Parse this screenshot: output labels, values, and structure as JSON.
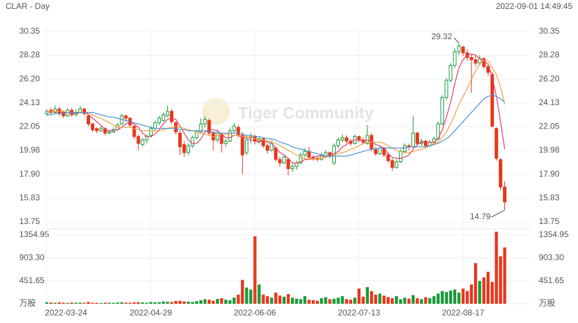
{
  "chart_data": {
    "type": "candlestick",
    "title": "CLAR - Day",
    "timestamp": "2022-09-01 14:49:45",
    "watermark": "Tiger Community",
    "up_color": "#1a9a3a",
    "down_color": "#e8361a",
    "categories": [
      "2022-03-24",
      null,
      null,
      null,
      null,
      null,
      null,
      null,
      null,
      null,
      null,
      null,
      null,
      null,
      null,
      null,
      null,
      null,
      null,
      null,
      null,
      null,
      null,
      null,
      null,
      "2022-04-29",
      null,
      null,
      null,
      null,
      null,
      null,
      null,
      null,
      null,
      null,
      null,
      null,
      null,
      null,
      null,
      null,
      null,
      null,
      null,
      null,
      null,
      null,
      null,
      null,
      "2022-06-06",
      null,
      null,
      null,
      null,
      null,
      null,
      null,
      null,
      null,
      null,
      null,
      null,
      null,
      null,
      null,
      null,
      null,
      null,
      null,
      null,
      null,
      null,
      null,
      null,
      "2022-07-13",
      null,
      null,
      null,
      null,
      null,
      null,
      null,
      null,
      null,
      null,
      null,
      null,
      null,
      null,
      null,
      null,
      null,
      null,
      null,
      null,
      null,
      null,
      null,
      null,
      "2022-08-17",
      null,
      null,
      null,
      null,
      null,
      null,
      null,
      null,
      null,
      null
    ],
    "candles": [
      [
        23.2,
        23.6,
        23.0,
        23.4
      ],
      [
        23.5,
        23.7,
        23.1,
        23.3
      ],
      [
        23.3,
        23.9,
        23.2,
        23.6
      ],
      [
        23.6,
        23.8,
        23.0,
        23.2
      ],
      [
        23.3,
        23.5,
        22.8,
        23.0
      ],
      [
        23.0,
        23.7,
        22.9,
        23.5
      ],
      [
        23.5,
        23.7,
        22.9,
        23.1
      ],
      [
        23.1,
        23.6,
        23.0,
        23.3
      ],
      [
        23.3,
        23.9,
        23.2,
        23.6
      ],
      [
        23.6,
        23.7,
        23.0,
        23.2
      ],
      [
        23.0,
        23.1,
        22.1,
        22.3
      ],
      [
        22.3,
        22.4,
        21.6,
        21.8
      ],
      [
        21.9,
        22.0,
        21.5,
        21.7
      ],
      [
        21.7,
        22.1,
        21.6,
        21.9
      ],
      [
        21.9,
        22.0,
        21.3,
        21.5
      ],
      [
        21.5,
        21.8,
        21.4,
        21.6
      ],
      [
        21.6,
        22.0,
        21.5,
        21.8
      ],
      [
        21.8,
        22.4,
        21.7,
        22.2
      ],
      [
        22.3,
        23.2,
        22.2,
        23.0
      ],
      [
        23.0,
        23.1,
        22.5,
        22.8
      ],
      [
        22.8,
        22.9,
        22.0,
        22.2
      ],
      [
        22.1,
        22.2,
        21.0,
        21.2
      ],
      [
        21.2,
        21.4,
        20.0,
        20.6
      ],
      [
        20.5,
        21.1,
        20.3,
        20.9
      ],
      [
        20.9,
        21.4,
        20.6,
        21.2
      ],
      [
        21.3,
        22.1,
        21.1,
        21.9
      ],
      [
        21.9,
        22.6,
        21.7,
        22.4
      ],
      [
        22.4,
        23.0,
        22.2,
        22.8
      ],
      [
        22.6,
        23.3,
        22.5,
        23.1
      ],
      [
        23.0,
        23.9,
        22.9,
        23.4
      ],
      [
        23.4,
        23.6,
        22.3,
        22.5
      ],
      [
        22.4,
        22.5,
        21.4,
        21.6
      ],
      [
        21.5,
        21.7,
        19.6,
        20.3
      ],
      [
        20.5,
        20.8,
        19.4,
        19.8
      ],
      [
        19.8,
        20.6,
        19.6,
        20.4
      ],
      [
        20.4,
        21.3,
        20.2,
        21.1
      ],
      [
        21.1,
        21.8,
        20.9,
        21.6
      ],
      [
        21.6,
        22.8,
        21.5,
        22.3
      ],
      [
        22.3,
        23.0,
        22.0,
        22.7
      ],
      [
        22.6,
        22.8,
        21.3,
        21.5
      ],
      [
        21.5,
        21.6,
        20.0,
        20.9
      ],
      [
        20.9,
        21.8,
        20.7,
        21.5
      ],
      [
        21.4,
        21.5,
        19.8,
        20.6
      ],
      [
        20.6,
        21.0,
        20.3,
        20.8
      ],
      [
        20.8,
        22.0,
        20.7,
        21.7
      ],
      [
        21.7,
        22.4,
        21.5,
        22.1
      ],
      [
        22.0,
        22.2,
        21.1,
        21.3
      ],
      [
        21.3,
        21.6,
        17.9,
        19.6
      ],
      [
        19.8,
        21.1,
        19.6,
        20.9
      ],
      [
        21.1,
        21.5,
        20.6,
        21.2
      ],
      [
        21.2,
        21.4,
        20.5,
        20.8
      ],
      [
        20.8,
        21.2,
        20.6,
        21.0
      ],
      [
        21.0,
        21.1,
        20.2,
        20.4
      ],
      [
        20.4,
        20.6,
        19.7,
        20.0
      ],
      [
        20.0,
        20.8,
        19.9,
        20.6
      ],
      [
        20.2,
        20.3,
        19.0,
        19.2
      ],
      [
        19.2,
        19.4,
        18.6,
        18.9
      ],
      [
        18.9,
        19.6,
        18.8,
        19.4
      ],
      [
        19.2,
        19.3,
        17.8,
        18.4
      ],
      [
        18.4,
        18.8,
        18.1,
        18.6
      ],
      [
        18.6,
        19.1,
        18.3,
        18.9
      ],
      [
        18.9,
        19.8,
        18.8,
        19.6
      ],
      [
        19.6,
        20.2,
        19.4,
        19.9
      ],
      [
        19.9,
        20.3,
        19.2,
        19.4
      ],
      [
        19.4,
        19.6,
        19.1,
        19.3
      ],
      [
        19.3,
        19.5,
        19.0,
        19.2
      ],
      [
        19.2,
        19.8,
        19.1,
        19.6
      ],
      [
        19.5,
        20.0,
        19.3,
        19.8
      ],
      [
        19.8,
        19.9,
        19.3,
        19.5
      ],
      [
        18.9,
        20.6,
        18.7,
        20.4
      ],
      [
        20.4,
        21.1,
        20.2,
        20.9
      ],
      [
        20.9,
        21.4,
        20.7,
        21.1
      ],
      [
        21.1,
        21.3,
        20.6,
        20.8
      ],
      [
        20.8,
        21.0,
        20.4,
        20.6
      ],
      [
        20.6,
        21.4,
        20.5,
        21.2
      ],
      [
        21.2,
        21.3,
        20.7,
        20.9
      ],
      [
        20.9,
        21.1,
        20.5,
        20.7
      ],
      [
        20.6,
        22.2,
        20.5,
        21.3
      ],
      [
        21.3,
        21.5,
        19.9,
        20.1
      ],
      [
        20.1,
        20.3,
        19.5,
        19.7
      ],
      [
        19.7,
        20.4,
        19.6,
        20.2
      ],
      [
        20.2,
        20.3,
        19.4,
        19.6
      ],
      [
        19.6,
        19.8,
        18.9,
        19.1
      ],
      [
        19.1,
        19.3,
        18.2,
        18.5
      ],
      [
        18.5,
        19.2,
        18.4,
        19.0
      ],
      [
        19.0,
        20.1,
        18.9,
        19.9
      ],
      [
        19.9,
        20.6,
        19.7,
        20.4
      ],
      [
        20.4,
        20.6,
        20.0,
        20.3
      ],
      [
        20.3,
        23.0,
        20.2,
        21.5
      ],
      [
        21.5,
        21.6,
        20.4,
        20.6
      ],
      [
        20.6,
        21.0,
        20.4,
        20.8
      ],
      [
        20.8,
        20.9,
        20.2,
        20.4
      ],
      [
        20.4,
        20.9,
        20.3,
        20.7
      ],
      [
        20.7,
        21.2,
        20.5,
        21.0
      ],
      [
        21.0,
        22.5,
        20.9,
        22.3
      ],
      [
        22.3,
        24.8,
        22.2,
        24.6
      ],
      [
        24.6,
        26.3,
        24.4,
        26.1
      ],
      [
        26.1,
        27.6,
        25.9,
        27.4
      ],
      [
        27.4,
        28.9,
        27.2,
        28.6
      ],
      [
        28.6,
        29.32,
        28.3,
        29.1
      ],
      [
        29.0,
        29.1,
        28.2,
        28.5
      ],
      [
        28.5,
        28.8,
        27.8,
        28.1
      ],
      [
        28.1,
        28.4,
        25.0,
        27.9
      ],
      [
        27.9,
        28.3,
        27.3,
        27.6
      ],
      [
        27.6,
        28.3,
        27.4,
        28.0
      ],
      [
        28.0,
        28.1,
        27.1,
        27.3
      ],
      [
        27.3,
        27.4,
        26.5,
        26.8
      ],
      [
        26.6,
        26.8,
        22.0,
        22.1
      ],
      [
        21.9,
        22.0,
        19.1,
        19.3
      ],
      [
        19.2,
        19.3,
        16.5,
        16.8
      ],
      [
        16.8,
        17.3,
        14.79,
        15.5
      ]
    ],
    "ma": [
      {
        "color": "#e23a6e",
        "values": [
          23.4,
          23.4,
          23.4,
          23.4,
          23.3,
          23.3,
          23.3,
          23.2,
          23.3,
          23.3,
          23.1,
          22.8,
          22.5,
          22.2,
          21.8,
          21.7,
          21.7,
          21.8,
          22.0,
          22.3,
          22.5,
          22.3,
          22.0,
          21.5,
          21.2,
          21.2,
          21.4,
          21.8,
          22.3,
          22.7,
          22.8,
          22.7,
          22.1,
          21.5,
          20.9,
          20.6,
          20.6,
          21.0,
          21.6,
          21.8,
          21.8,
          21.7,
          21.4,
          21.1,
          21.1,
          21.3,
          21.3,
          21.1,
          21.1,
          20.9,
          20.8,
          20.7,
          20.9,
          20.7,
          20.6,
          20.2,
          19.8,
          19.6,
          19.3,
          18.9,
          18.9,
          19.0,
          19.2,
          19.2,
          19.4,
          19.5,
          19.5,
          19.5,
          19.5,
          19.7,
          19.9,
          20.3,
          20.5,
          20.8,
          20.9,
          20.9,
          20.8,
          20.9,
          20.8,
          20.5,
          20.4,
          20.2,
          19.7,
          19.4,
          19.3,
          19.3,
          19.4,
          19.6,
          20.1,
          20.5,
          20.7,
          20.7,
          20.7,
          20.7,
          21.0,
          21.8,
          22.9,
          24.2,
          25.8,
          27.2,
          27.9,
          28.3,
          28.4,
          28.3,
          28.0,
          27.8,
          27.5,
          26.4,
          24.7,
          22.5,
          20.1
        ]
      },
      {
        "color": "#f0a040",
        "values": [
          23.4,
          23.4,
          23.4,
          23.4,
          23.4,
          23.3,
          23.3,
          23.3,
          23.3,
          23.3,
          23.2,
          23.1,
          22.9,
          22.8,
          22.6,
          22.4,
          22.2,
          22.0,
          22.0,
          22.0,
          22.0,
          21.9,
          21.8,
          21.7,
          21.7,
          21.7,
          21.7,
          21.7,
          21.8,
          21.9,
          22.0,
          22.1,
          22.0,
          21.9,
          21.8,
          21.7,
          21.6,
          21.5,
          21.4,
          21.3,
          21.2,
          21.3,
          21.4,
          21.4,
          21.4,
          21.3,
          21.3,
          21.2,
          21.2,
          21.2,
          21.0,
          20.9,
          20.9,
          20.8,
          20.8,
          20.6,
          20.4,
          20.2,
          20.0,
          19.8,
          19.6,
          19.4,
          19.3,
          19.2,
          19.2,
          19.2,
          19.3,
          19.4,
          19.5,
          19.6,
          19.7,
          19.8,
          19.9,
          20.1,
          20.2,
          20.4,
          20.6,
          20.7,
          20.7,
          20.7,
          20.7,
          20.6,
          20.4,
          20.2,
          20.0,
          19.9,
          19.8,
          19.8,
          19.9,
          20.0,
          20.1,
          20.2,
          20.4,
          20.6,
          20.7,
          21.1,
          21.6,
          22.3,
          23.1,
          24.0,
          24.7,
          25.4,
          26.2,
          26.9,
          27.5,
          27.9,
          27.8,
          27.2,
          26.6,
          25.5,
          24.0
        ]
      },
      {
        "color": "#4a90d0",
        "values": [
          23.1,
          23.1,
          23.2,
          23.2,
          23.2,
          23.3,
          23.3,
          23.3,
          23.3,
          23.3,
          23.3,
          23.3,
          23.2,
          23.1,
          23.0,
          22.9,
          22.9,
          22.8,
          22.7,
          22.6,
          22.5,
          22.4,
          22.3,
          22.2,
          22.1,
          22.0,
          21.9,
          21.9,
          21.9,
          21.9,
          21.9,
          21.9,
          21.8,
          21.8,
          21.7,
          21.7,
          21.7,
          21.7,
          21.7,
          21.6,
          21.6,
          21.5,
          21.5,
          21.5,
          21.5,
          21.5,
          21.5,
          21.4,
          21.3,
          21.3,
          21.2,
          21.2,
          21.1,
          21.0,
          21.0,
          20.9,
          20.7,
          20.6,
          20.5,
          20.3,
          20.2,
          20.1,
          20.0,
          19.9,
          19.8,
          19.7,
          19.6,
          19.5,
          19.5,
          19.5,
          19.5,
          19.5,
          19.5,
          19.6,
          19.7,
          19.8,
          19.9,
          20.0,
          20.1,
          20.1,
          20.2,
          20.2,
          20.2,
          20.2,
          20.2,
          20.2,
          20.2,
          20.3,
          20.3,
          20.3,
          20.3,
          20.3,
          20.4,
          20.5,
          20.6,
          20.8,
          21.0,
          21.3,
          21.7,
          22.1,
          22.5,
          22.9,
          23.3,
          23.7,
          24.1,
          24.5,
          24.7,
          24.8,
          24.7,
          24.5,
          24.2
        ]
      }
    ],
    "ylim": [
      13.75,
      30.35
    ],
    "yticks": [
      30.35,
      28.28,
      {
        "value": 26.2,
        "label": "26.20"
      },
      24.13,
      22.05,
      19.98,
      {
        "value": 17.9,
        "label": "17.90"
      },
      15.83,
      13.75
    ],
    "volume": {
      "values": [
        30,
        25,
        20,
        28,
        22,
        18,
        25,
        20,
        22,
        18,
        35,
        20,
        18,
        15,
        22,
        20,
        18,
        25,
        30,
        22,
        20,
        28,
        30,
        25,
        20,
        35,
        28,
        30,
        45,
        40,
        35,
        55,
        60,
        45,
        40,
        35,
        50,
        70,
        90,
        80,
        60,
        95,
        110,
        80,
        70,
        120,
        180,
        470,
        320,
        280,
        1330,
        380,
        180,
        150,
        120,
        220,
        160,
        140,
        190,
        120,
        100,
        90,
        150,
        80,
        70,
        60,
        110,
        130,
        90,
        100,
        120,
        150,
        90,
        80,
        120,
        300,
        140,
        330,
        250,
        180,
        200,
        160,
        130,
        110,
        150,
        90,
        120,
        100,
        170,
        110,
        90,
        130,
        110,
        150,
        200,
        250,
        230,
        260,
        280,
        220,
        300,
        250,
        380,
        800,
        450,
        520,
        630,
        430,
        1420,
        935,
        1110
      ],
      "ylim": [
        0,
        1430
      ],
      "yticks": [
        1354.95,
        {
          "value": 903.3,
          "label": "903.30"
        },
        451.65,
        {
          "value": 0,
          "label": "万股"
        }
      ]
    }
  }
}
